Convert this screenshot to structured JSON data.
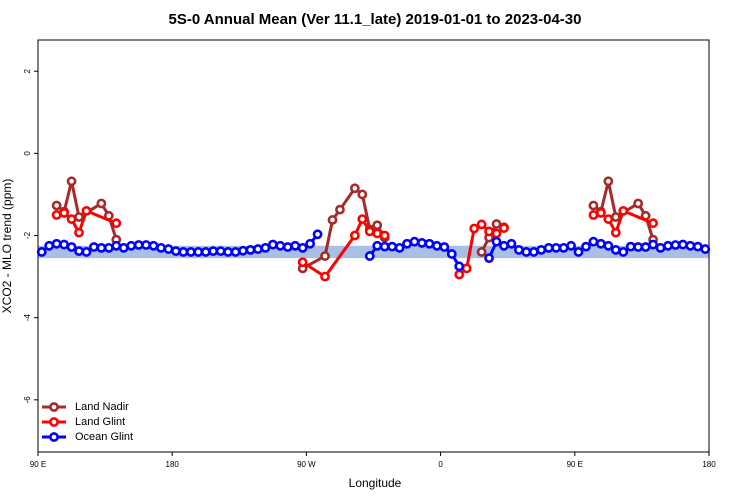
{
  "chart_data": {
    "type": "line",
    "title": "5S-0 Annual Mean (Ver 11.1_late)   2019-01-01 to 2023-04-30",
    "x_label": "Longitude",
    "y_label": "XCO2 - MLO trend (ppm)",
    "xlim": [
      90,
      540
    ],
    "xticks": [
      {
        "value": 90,
        "label": "90 E"
      },
      180,
      {
        "value": 270,
        "label": "90 W"
      },
      {
        "value": 360,
        "label": "0"
      },
      {
        "value": 450,
        "label": "90 E"
      },
      {
        "value": 540,
        "label": "180"
      }
    ],
    "ylim": [
      -7.27,
      2.76
    ],
    "yticks": [
      -6,
      -4,
      -2,
      0,
      2
    ],
    "band": {
      "range": [
        -2.55,
        -2.25
      ],
      "color": "#a9bfe3"
    },
    "legend": "lower left",
    "series": [
      {
        "name": "Land Nadir",
        "color": "#a52a2a",
        "x": [
          102.5,
          107.5,
          112.5,
          117.5,
          132.5,
          137.5,
          142.5,
          200,
          267.5,
          282.5,
          287.5,
          292.5,
          302.5,
          307.5,
          312.5,
          317.5,
          322.5,
          350,
          387.5,
          392.5,
          397.5,
          402.5,
          430,
          462.5,
          467.5,
          472.5,
          477.5,
          492.5,
          497.5,
          502.5
        ],
        "values": [
          -1.27,
          -1.42,
          -0.68,
          -1.55,
          -1.22,
          -1.52,
          -2.1,
          null,
          -2.8,
          -2.5,
          -1.62,
          -1.37,
          -0.85,
          -1.0,
          -1.85,
          -1.75,
          -2.05,
          null,
          -2.4,
          -2.05,
          -1.72,
          -1.8,
          null,
          -1.27,
          -1.42,
          -0.68,
          -1.55,
          -1.22,
          -1.52,
          -2.1
        ]
      },
      {
        "name": "Land Glint",
        "color": "#ff0000",
        "x": [
          102.5,
          107.5,
          112.5,
          117.5,
          122.5,
          142.5,
          200,
          267.5,
          282.5,
          302.5,
          307.5,
          312.5,
          317.5,
          322.5,
          350,
          372.5,
          377.5,
          382.5,
          387.5,
          392.5,
          397.5,
          402.5,
          430,
          462.5,
          467.5,
          472.5,
          477.5,
          482.5,
          502.5
        ],
        "values": [
          -1.5,
          -1.45,
          -1.6,
          -1.93,
          -1.4,
          -1.7,
          null,
          -2.65,
          -3.0,
          -2.0,
          -1.6,
          -1.9,
          -1.95,
          -2.0,
          null,
          -2.95,
          -2.8,
          -1.83,
          -1.73,
          -1.9,
          -1.95,
          -1.82,
          null,
          -1.5,
          -1.45,
          -1.6,
          -1.93,
          -1.4,
          -1.7
        ]
      },
      {
        "name": "Ocean Glint",
        "color": "#0000ff",
        "x": [
          92.5,
          97.5,
          102.5,
          107.5,
          112.5,
          117.5,
          122.5,
          127.5,
          132.5,
          137.5,
          142.5,
          147.5,
          152.5,
          157.5,
          162.5,
          167.5,
          172.5,
          177.5,
          182.5,
          187.5,
          192.5,
          197.5,
          202.5,
          207.5,
          212.5,
          217.5,
          222.5,
          227.5,
          232.5,
          237.5,
          242.5,
          247.5,
          252.5,
          257.5,
          262.5,
          267.5,
          272.5,
          277.5,
          282.5,
          287.5,
          292.5,
          297.5,
          302.5,
          307.5,
          312.5,
          317.5,
          322.5,
          327.5,
          332.5,
          337.5,
          342.5,
          347.5,
          352.5,
          357.5,
          362.5,
          367.5,
          372.5,
          377.5,
          382.5,
          387.5,
          392.5,
          397.5,
          402.5,
          407.5,
          412.5,
          417.5,
          422.5,
          427.5,
          432.5,
          437.5,
          442.5,
          447.5,
          452.5,
          457.5,
          462.5,
          467.5,
          472.5,
          477.5,
          482.5,
          487.5,
          492.5,
          497.5,
          502.5,
          507.5,
          512.5,
          517.5,
          522.5,
          527.5,
          532.5,
          537.5
        ],
        "values": [
          -2.4,
          -2.25,
          -2.2,
          -2.22,
          -2.28,
          -2.38,
          -2.4,
          -2.28,
          -2.3,
          -2.3,
          -2.25,
          -2.3,
          -2.25,
          -2.23,
          -2.23,
          -2.25,
          -2.3,
          -2.33,
          -2.38,
          -2.4,
          -2.4,
          -2.4,
          -2.4,
          -2.38,
          -2.38,
          -2.4,
          -2.4,
          -2.37,
          -2.35,
          -2.33,
          -2.3,
          -2.22,
          -2.25,
          -2.28,
          -2.25,
          -2.3,
          -2.2,
          -1.97,
          null,
          null,
          null,
          null,
          null,
          null,
          -2.5,
          -2.25,
          -2.27,
          -2.27,
          -2.3,
          -2.2,
          -2.15,
          -2.18,
          -2.2,
          -2.25,
          -2.28,
          -2.45,
          -2.75,
          null,
          null,
          null,
          -2.55,
          -2.15,
          -2.25,
          -2.2,
          -2.35,
          -2.4,
          -2.4,
          -2.35,
          -2.3,
          -2.3,
          -2.3,
          -2.25,
          -2.4,
          -2.27,
          -2.15,
          -2.2,
          -2.25,
          -2.35,
          -2.4,
          -2.27,
          -2.28,
          -2.28,
          -2.22,
          -2.3,
          -2.25,
          -2.23,
          -2.22,
          -2.25,
          -2.27,
          -2.33
        ]
      }
    ]
  }
}
